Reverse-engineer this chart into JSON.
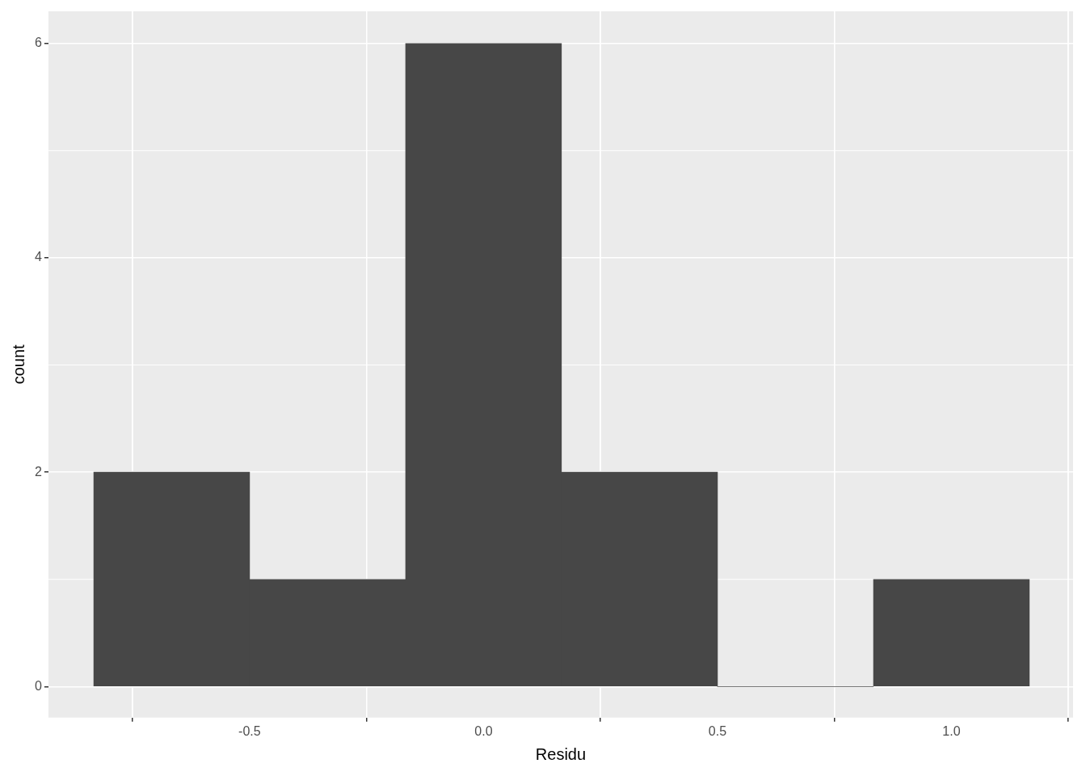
{
  "chart_data": {
    "type": "histogram",
    "xlabel": "Residu",
    "ylabel": "count",
    "bins": [
      -0.833,
      -0.5,
      -0.167,
      0.167,
      0.5,
      0.833,
      1.167
    ],
    "values": [
      2,
      1,
      6,
      2,
      0,
      1
    ],
    "color": "#474747",
    "xlim": [
      -0.93,
      1.26
    ],
    "ylim": [
      -0.29,
      6.3
    ],
    "xticks": [
      -0.5,
      {
        "value": 0,
        "label": "0.0"
      },
      0.5,
      {
        "value": 1,
        "label": "1.0"
      }
    ],
    "yticks": [
      0,
      2,
      4,
      6
    ],
    "grid": true,
    "legend": false
  }
}
